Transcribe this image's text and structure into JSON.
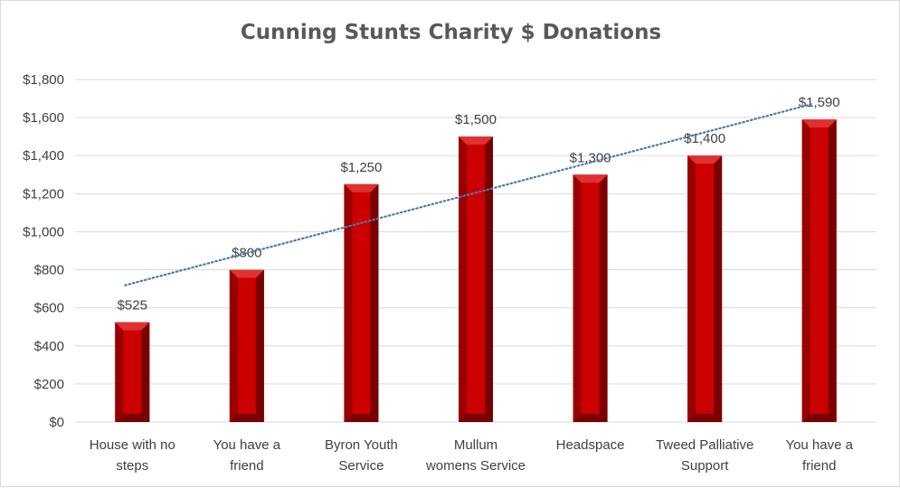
{
  "chart_data": {
    "type": "bar",
    "title": "Cunning Stunts Charity $ Donations",
    "categories": [
      [
        "House with no",
        "steps"
      ],
      [
        "You have a",
        "friend"
      ],
      [
        "Byron Youth",
        "Service"
      ],
      [
        "Mullum",
        "womens Service"
      ],
      [
        "Headspace"
      ],
      [
        "Tweed Palliative",
        "Support"
      ],
      [
        "You have a",
        "friend"
      ]
    ],
    "values": [
      525,
      800,
      1250,
      1500,
      1300,
      1400,
      1590
    ],
    "data_labels": [
      "$525",
      "$800",
      "$1,250",
      "$1,500",
      "$1,300",
      "$1,400",
      "$1,590"
    ],
    "y_ticks": [
      0,
      200,
      400,
      600,
      800,
      1000,
      1200,
      1400,
      1600,
      1800
    ],
    "y_tick_labels": [
      "$0",
      "$200",
      "$400",
      "$600",
      "$800",
      "$1,000",
      "$1,200",
      "$1,400",
      "$1,600",
      "$1,800"
    ],
    "ylim": [
      0,
      1800
    ],
    "grid": true,
    "trendline": "linear",
    "colors": {
      "bar_face": "#cc0000",
      "bar_edge": "#7a0000",
      "bar_bevel": "#990000",
      "trendline": "#4f7aa8",
      "grid": "#d9d9d9"
    }
  }
}
